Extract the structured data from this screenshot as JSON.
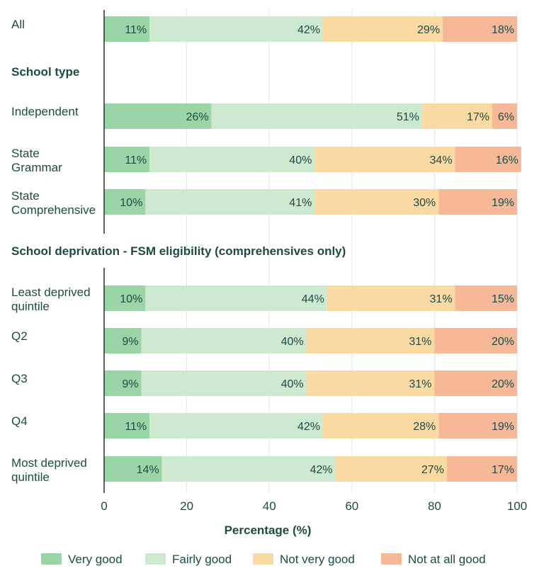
{
  "chart_data": {
    "type": "bar",
    "orientation": "horizontal",
    "stacked": true,
    "xlabel": "Percentage (%)",
    "xlim": [
      0,
      100
    ],
    "x_ticks": [
      0,
      20,
      40,
      60,
      80,
      100
    ],
    "grid": true,
    "legend_position": "bottom",
    "series": [
      {
        "name": "Very good",
        "color": "#9bd4a6"
      },
      {
        "name": "Fairly good",
        "color": "#cde9d0"
      },
      {
        "name": "Not very good",
        "color": "#fad9a3"
      },
      {
        "name": "Not at all good",
        "color": "#f7b898"
      }
    ],
    "groups": [
      {
        "heading": "",
        "rows": [
          {
            "label": [
              "All"
            ],
            "values": [
              11,
              42,
              29,
              18
            ]
          }
        ]
      },
      {
        "heading": "School type",
        "rows": [
          {
            "label": [
              "Independent"
            ],
            "values": [
              26,
              51,
              17,
              6
            ]
          },
          {
            "label": [
              "State",
              "Grammar"
            ],
            "values": [
              11,
              40,
              34,
              16
            ]
          },
          {
            "label": [
              "State",
              "Comprehensive"
            ],
            "values": [
              10,
              41,
              30,
              19
            ]
          }
        ]
      },
      {
        "heading": "School deprivation - FSM eligibility (comprehensives only)",
        "rows": [
          {
            "label": [
              "Least deprived",
              "quintile"
            ],
            "values": [
              10,
              44,
              31,
              15
            ]
          },
          {
            "label": [
              "Q2"
            ],
            "values": [
              9,
              40,
              31,
              20
            ]
          },
          {
            "label": [
              "Q3"
            ],
            "values": [
              9,
              40,
              31,
              20
            ]
          },
          {
            "label": [
              "Q4"
            ],
            "values": [
              11,
              42,
              28,
              19
            ]
          },
          {
            "label": [
              "Most deprived",
              "quintile"
            ],
            "values": [
              14,
              42,
              27,
              17
            ]
          }
        ]
      }
    ]
  }
}
